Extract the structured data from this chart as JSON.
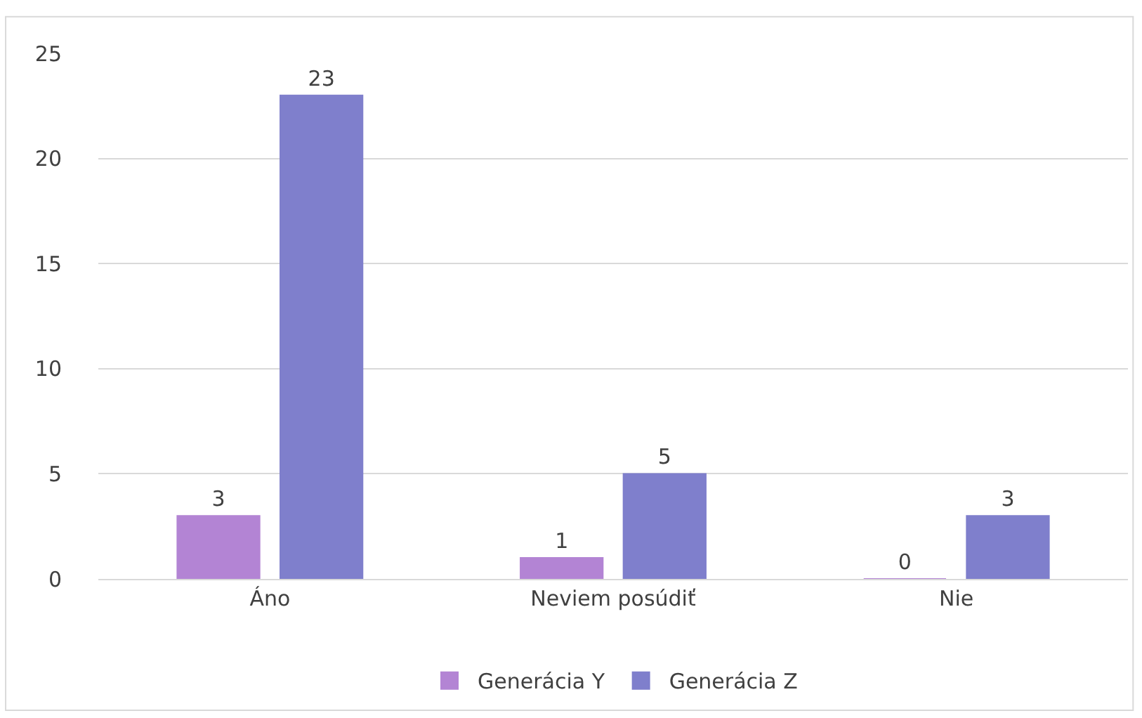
{
  "chart_data": {
    "type": "bar",
    "categories": [
      "Áno",
      "Neviem posúdiť",
      "Nie"
    ],
    "series": [
      {
        "name": "Generácia Y",
        "color": "#b384d4",
        "values": [
          3,
          1,
          0
        ]
      },
      {
        "name": "Generácia Z",
        "color": "#7f7fcc",
        "values": [
          23,
          5,
          3
        ]
      }
    ],
    "ylim": [
      0,
      25
    ],
    "yticks": [
      0,
      5,
      10,
      15,
      20,
      25
    ],
    "grid": "y",
    "legend": "bottom",
    "data_labels": true
  }
}
